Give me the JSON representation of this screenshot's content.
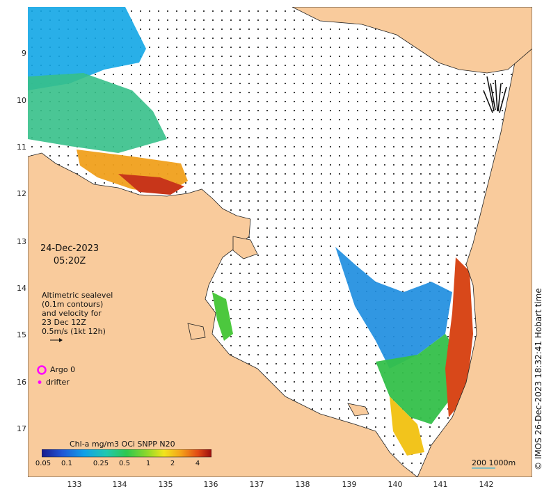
{
  "axes": {
    "latitude_ticks": [
      "9",
      "10",
      "11",
      "12",
      "13",
      "14",
      "15",
      "16",
      "17"
    ],
    "longitude_ticks": [
      "133",
      "134",
      "135",
      "136",
      "137",
      "138",
      "139",
      "140",
      "141",
      "142"
    ]
  },
  "overlay": {
    "date": "24-Dec-2023",
    "time": "05:20Z",
    "altimetry_lines": [
      "Altimetric sealevel",
      "(0.1m contours)",
      "and velocity for",
      "23 Dec 12Z",
      "0.5m/s (1kt 12h)"
    ]
  },
  "legend": {
    "argo_label": "Argo 0",
    "drifter_label": "drifter"
  },
  "colorbar": {
    "title": "Chl-a mg/m3 OCi SNPP N20",
    "ticks": [
      "0.05",
      "0.1",
      "0.25",
      "0.5",
      "1",
      "2",
      "4"
    ]
  },
  "scale": {
    "label": "200  1000m"
  },
  "credit": "© IMOS 26-Dec-2023 18:32:41 Hobart time",
  "colors": {
    "land": "#f9cb9c",
    "ocean": "#ffffff",
    "argo": "#ff00ff",
    "scale_line": "#5ab4c8"
  },
  "icons": {
    "argo_marker": "magenta-ring",
    "drifter_marker": "magenta-dot",
    "velocity_arrow": "arrow"
  }
}
